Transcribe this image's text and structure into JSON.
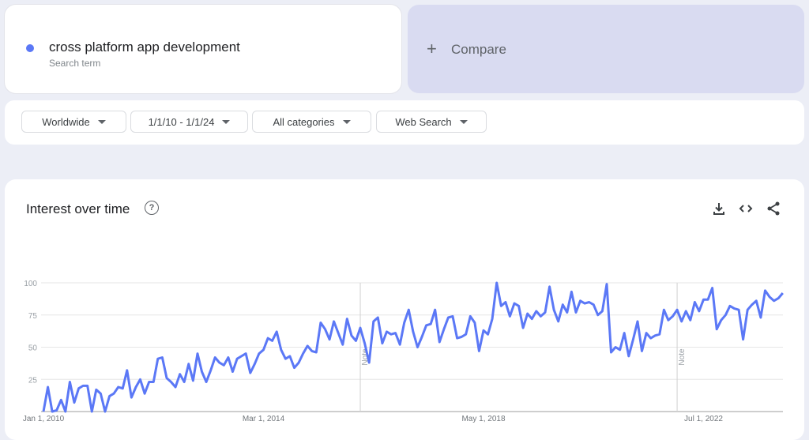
{
  "search_term": {
    "label": "cross platform app development",
    "sublabel": "Search term",
    "color": "#5b78f6"
  },
  "compare": {
    "icon": "plus-icon",
    "label": "Compare"
  },
  "filters": {
    "region": "Worldwide",
    "date_range": "1/1/10 - 1/1/24",
    "category": "All categories",
    "search_type": "Web Search"
  },
  "card": {
    "title": "Interest over time",
    "help_icon": "question-circle-icon",
    "actions": [
      "download-icon",
      "embed-code-icon",
      "share-icon"
    ]
  },
  "chart_data": {
    "type": "line",
    "ylim": [
      0,
      100
    ],
    "yticks": [
      "25",
      "50",
      "75",
      "100"
    ],
    "xtick_labels": [
      "Jan 1, 2010",
      "Mar 1, 2014",
      "May 1, 2018",
      "Jul 1, 2022"
    ],
    "xticks": [
      "2010-01",
      "2014-03",
      "2018-05",
      "2022-07"
    ],
    "grid": true,
    "line_color": "#5b78f6",
    "notes": [
      {
        "x": "2016-01",
        "label": "Note"
      },
      {
        "x": "2022-01",
        "label": "Note"
      }
    ],
    "x": [
      "2010-01",
      "2010-02",
      "2010-03",
      "2010-04",
      "2010-05",
      "2010-06",
      "2010-07",
      "2010-08",
      "2010-09",
      "2010-10",
      "2010-11",
      "2010-12",
      "2011-01",
      "2011-02",
      "2011-03",
      "2011-04",
      "2011-05",
      "2011-06",
      "2011-07",
      "2011-08",
      "2011-09",
      "2011-10",
      "2011-11",
      "2011-12",
      "2012-01",
      "2012-02",
      "2012-03",
      "2012-04",
      "2012-05",
      "2012-06",
      "2012-07",
      "2012-08",
      "2012-09",
      "2012-10",
      "2012-11",
      "2012-12",
      "2013-01",
      "2013-02",
      "2013-03",
      "2013-04",
      "2013-05",
      "2013-06",
      "2013-07",
      "2013-08",
      "2013-09",
      "2013-10",
      "2013-11",
      "2013-12",
      "2014-01",
      "2014-02",
      "2014-03",
      "2014-04",
      "2014-05",
      "2014-06",
      "2014-07",
      "2014-08",
      "2014-09",
      "2014-10",
      "2014-11",
      "2014-12",
      "2015-01",
      "2015-02",
      "2015-03",
      "2015-04",
      "2015-05",
      "2015-06",
      "2015-07",
      "2015-08",
      "2015-09",
      "2015-10",
      "2015-11",
      "2015-12",
      "2016-01",
      "2016-02",
      "2016-03",
      "2016-04",
      "2016-05",
      "2016-06",
      "2016-07",
      "2016-08",
      "2016-09",
      "2016-10",
      "2016-11",
      "2016-12",
      "2017-01",
      "2017-02",
      "2017-03",
      "2017-04",
      "2017-05",
      "2017-06",
      "2017-07",
      "2017-08",
      "2017-09",
      "2017-10",
      "2017-11",
      "2017-12",
      "2018-01",
      "2018-02",
      "2018-03",
      "2018-04",
      "2018-05",
      "2018-06",
      "2018-07",
      "2018-08",
      "2018-09",
      "2018-10",
      "2018-11",
      "2018-12",
      "2019-01",
      "2019-02",
      "2019-03",
      "2019-04",
      "2019-05",
      "2019-06",
      "2019-07",
      "2019-08",
      "2019-09",
      "2019-10",
      "2019-11",
      "2019-12",
      "2020-01",
      "2020-02",
      "2020-03",
      "2020-04",
      "2020-05",
      "2020-06",
      "2020-07",
      "2020-08",
      "2020-09",
      "2020-10",
      "2020-11",
      "2020-12",
      "2021-01",
      "2021-02",
      "2021-03",
      "2021-04",
      "2021-05",
      "2021-06",
      "2021-07",
      "2021-08",
      "2021-09",
      "2021-10",
      "2021-11",
      "2021-12",
      "2022-01",
      "2022-02",
      "2022-03",
      "2022-04",
      "2022-05",
      "2022-06",
      "2022-07",
      "2022-08",
      "2022-09",
      "2022-10",
      "2022-11",
      "2022-12",
      "2023-01",
      "2023-02",
      "2023-03",
      "2023-04",
      "2023-05",
      "2023-06",
      "2023-07",
      "2023-08",
      "2023-09",
      "2023-10",
      "2023-11",
      "2023-12",
      "2024-01"
    ],
    "values": [
      0,
      19,
      0,
      1,
      9,
      0,
      23,
      7,
      18,
      20,
      20,
      0,
      17,
      14,
      0,
      12,
      14,
      19,
      18,
      32,
      11,
      19,
      25,
      14,
      23,
      23,
      41,
      42,
      26,
      23,
      19,
      29,
      23,
      37,
      24,
      45,
      31,
      23,
      32,
      42,
      38,
      36,
      42,
      31,
      41,
      43,
      45,
      30,
      37,
      45,
      48,
      57,
      55,
      62,
      48,
      41,
      43,
      34,
      38,
      45,
      51,
      47,
      46,
      69,
      64,
      56,
      70,
      61,
      52,
      72,
      59,
      55,
      65,
      53,
      38,
      70,
      73,
      53,
      62,
      60,
      61,
      52,
      69,
      79,
      62,
      50,
      58,
      67,
      68,
      79,
      54,
      64,
      73,
      74,
      57,
      58,
      60,
      74,
      69,
      47,
      63,
      60,
      72,
      100,
      82,
      85,
      74,
      84,
      82,
      65,
      76,
      72,
      78,
      74,
      77,
      97,
      79,
      70,
      83,
      77,
      93,
      77,
      86,
      84,
      85,
      83,
      75,
      78,
      99,
      46,
      50,
      48,
      61,
      43,
      56,
      70,
      47,
      61,
      57,
      59,
      60,
      79,
      71,
      74,
      79,
      70,
      78,
      71,
      85,
      78,
      87,
      87,
      96,
      64,
      71,
      75,
      82,
      80,
      79,
      56,
      79,
      83,
      86,
      73,
      94,
      89,
      86,
      88,
      92
    ]
  }
}
